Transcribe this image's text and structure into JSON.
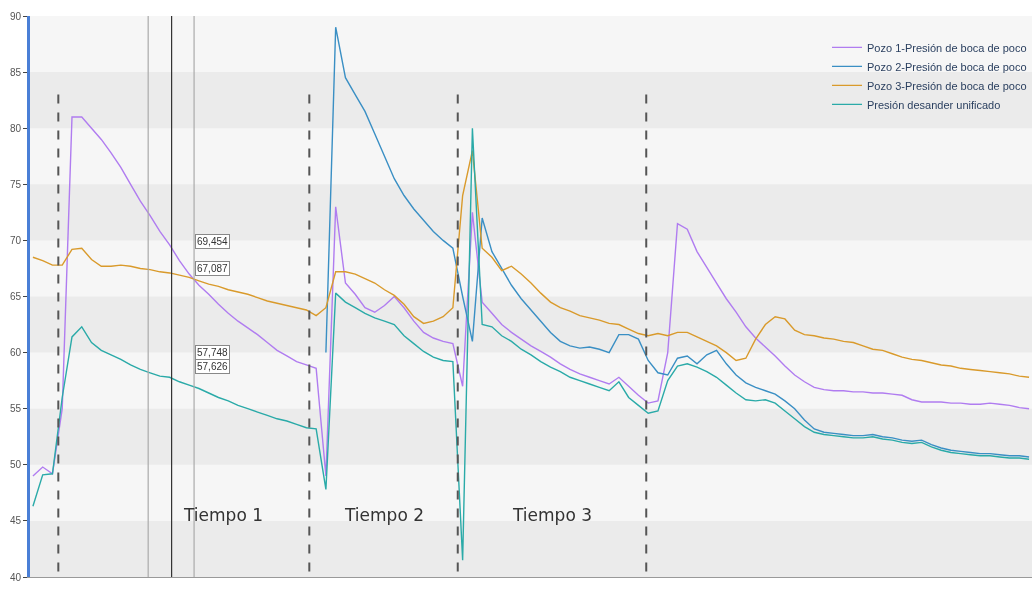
{
  "chart_data": {
    "type": "line",
    "categories": [
      null,
      null,
      null,
      null,
      null,
      null,
      null,
      null,
      null,
      null,
      null,
      null,
      null,
      null,
      null,
      null,
      null,
      null,
      null,
      null,
      null,
      null,
      null,
      null,
      null,
      null,
      null,
      null,
      null,
      null,
      null,
      null,
      null,
      null,
      null,
      null,
      null,
      null,
      null,
      null,
      null,
      null,
      null,
      null,
      null,
      null,
      null,
      null,
      null,
      null,
      null,
      null,
      null,
      null,
      null,
      null,
      null,
      null,
      null,
      null,
      null,
      null,
      null,
      null,
      null,
      null,
      null,
      null,
      null,
      null,
      null,
      null,
      null,
      null,
      null,
      null,
      null,
      null,
      null,
      null,
      null,
      null,
      null,
      null,
      null,
      null,
      null,
      null,
      null,
      null,
      null,
      null,
      null,
      null,
      null,
      null,
      null,
      null,
      null,
      null,
      null,
      null,
      null
    ],
    "series": [
      {
        "name": "Pozo 1-Presión de boca de poco",
        "color": "#b07cf0",
        "values": [
          49,
          49.8,
          49.2,
          55,
          81,
          81,
          80,
          79,
          77.8,
          76.5,
          75,
          73.5,
          72.2,
          70.8,
          69.6,
          68.2,
          67,
          66,
          65.2,
          64.3,
          63.5,
          62.8,
          62.2,
          61.6,
          60.9,
          60.2,
          59.7,
          59.2,
          58.9,
          58.6,
          49,
          73,
          66.2,
          65.2,
          64,
          63.6,
          64.2,
          65,
          64,
          62.8,
          61.8,
          61.3,
          61,
          60.8,
          57,
          72.5,
          64.5,
          63.5,
          62.5,
          61.8,
          61.2,
          60.6,
          60.1,
          59.6,
          59,
          58.5,
          58.1,
          57.8,
          57.5,
          57.2,
          57.8,
          57,
          56.2,
          55.5,
          55.7,
          60,
          71.5,
          71,
          69,
          67.6,
          66.2,
          64.8,
          63.6,
          62.3,
          61.3,
          60.5,
          59.7,
          58.8,
          58,
          57.4,
          56.9,
          56.7,
          56.6,
          56.6,
          56.5,
          56.5,
          56.4,
          56.4,
          56.3,
          56.2,
          55.8,
          55.6,
          55.6,
          55.6,
          55.5,
          55.5,
          55.4,
          55.4,
          55.5,
          55.4,
          55.3,
          55.1,
          55
        ]
      },
      {
        "name": "Pozo 2-Presión de boca de poco",
        "color": "#3a8fc4",
        "values": [
          null,
          null,
          null,
          null,
          null,
          null,
          null,
          null,
          null,
          null,
          null,
          null,
          null,
          null,
          null,
          null,
          null,
          null,
          null,
          null,
          null,
          null,
          null,
          null,
          null,
          null,
          null,
          null,
          null,
          null,
          60,
          89,
          84.5,
          83,
          81.5,
          79.5,
          77.5,
          75.5,
          74,
          72.8,
          71.8,
          70.8,
          70,
          69.3,
          65,
          61,
          72,
          69,
          67.5,
          66,
          64.8,
          63.8,
          62.8,
          61.8,
          61,
          60.6,
          60.4,
          60.5,
          60.3,
          60,
          61.6,
          61.6,
          61.2,
          59.3,
          58.2,
          58,
          59.5,
          59.7,
          59,
          59.8,
          60.2,
          59,
          58,
          57.3,
          56.9,
          56.6,
          56.3,
          55.7,
          55,
          54,
          53.2,
          52.9,
          52.8,
          52.7,
          52.6,
          52.6,
          52.7,
          52.5,
          52.4,
          52.2,
          52.1,
          52.2,
          51.8,
          51.5,
          51.3,
          51.2,
          51.1,
          51,
          51,
          50.9,
          50.8,
          50.8,
          50.7
        ]
      },
      {
        "name": "Pozo 3-Presión de boca de poco",
        "color": "#d99a2b",
        "values": [
          68.5,
          68.2,
          67.8,
          67.8,
          69.2,
          69.3,
          68.3,
          67.7,
          67.7,
          67.8,
          67.7,
          67.5,
          67.4,
          67.2,
          67.1,
          66.9,
          66.7,
          66.4,
          66.1,
          65.9,
          65.6,
          65.4,
          65.2,
          64.9,
          64.6,
          64.4,
          64.2,
          64,
          63.8,
          63.3,
          64,
          67.2,
          67.2,
          67,
          66.6,
          66.2,
          65.6,
          65.1,
          64.3,
          63.2,
          62.6,
          62.8,
          63.2,
          64,
          74,
          78,
          69.3,
          68.5,
          67.3,
          67.7,
          67,
          66.2,
          65.3,
          64.5,
          64,
          63.7,
          63.3,
          63.1,
          62.9,
          62.6,
          62.5,
          62.1,
          61.7,
          61.5,
          61.7,
          61.5,
          61.8,
          61.8,
          61.4,
          61,
          60.6,
          60,
          59.3,
          59.5,
          61.2,
          62.5,
          63.2,
          63,
          62,
          61.6,
          61.5,
          61.3,
          61.2,
          61,
          60.9,
          60.6,
          60.3,
          60.2,
          59.9,
          59.6,
          59.4,
          59.3,
          59.1,
          58.9,
          58.8,
          58.6,
          58.5,
          58.4,
          58.3,
          58.2,
          58.1,
          57.9,
          57.8
        ]
      },
      {
        "name": "Presión desander unificado",
        "color": "#2aaaa8",
        "values": [
          46.3,
          49.1,
          49.2,
          56,
          61.4,
          62.3,
          60.9,
          60.2,
          59.8,
          59.4,
          58.9,
          58.5,
          58.2,
          57.9,
          57.8,
          57.4,
          57.1,
          56.8,
          56.4,
          56,
          55.7,
          55.3,
          55,
          54.7,
          54.4,
          54.1,
          53.9,
          53.6,
          53.3,
          53.2,
          47.8,
          65.3,
          64.5,
          64,
          63.5,
          63.1,
          62.8,
          62.5,
          61.5,
          60.8,
          60.1,
          59.6,
          59.3,
          59.2,
          41.5,
          80,
          62.5,
          62.3,
          61.5,
          61,
          60.3,
          59.8,
          59.2,
          58.7,
          58.3,
          57.8,
          57.5,
          57.2,
          56.9,
          56.6,
          57.4,
          56,
          55.3,
          54.6,
          54.8,
          57.5,
          58.8,
          59,
          58.7,
          58.3,
          57.8,
          57.1,
          56.4,
          55.8,
          55.7,
          55.8,
          55.5,
          54.8,
          54.1,
          53.4,
          52.9,
          52.7,
          52.6,
          52.5,
          52.4,
          52.4,
          52.5,
          52.3,
          52.2,
          52,
          51.9,
          52,
          51.6,
          51.3,
          51.1,
          51,
          50.9,
          50.8,
          50.8,
          50.7,
          50.6,
          50.6,
          50.5
        ]
      }
    ],
    "ylim": [
      40,
      90
    ],
    "yticks": [
      40,
      45,
      50,
      55,
      60,
      65,
      70,
      75,
      80,
      85,
      90
    ],
    "bands": [
      {
        "axis": "y",
        "from": 40,
        "to": 45,
        "color": "#ebebeb"
      },
      {
        "axis": "y",
        "from": 50,
        "to": 55,
        "color": "#ebebeb"
      },
      {
        "axis": "y",
        "from": 60,
        "to": 65,
        "color": "#ebebeb"
      },
      {
        "axis": "y",
        "from": 70,
        "to": 75,
        "color": "#ebebeb"
      },
      {
        "axis": "y",
        "from": 80,
        "to": 85,
        "color": "#ebebeb"
      }
    ],
    "annotations": [
      "Tiempo 1",
      "Tiempo 2",
      "Tiempo 3",
      "69,454",
      "67,087",
      "57,748",
      "57,626"
    ],
    "legend": "top right",
    "grid": false,
    "marker": "none",
    "line_style": "solid"
  }
}
